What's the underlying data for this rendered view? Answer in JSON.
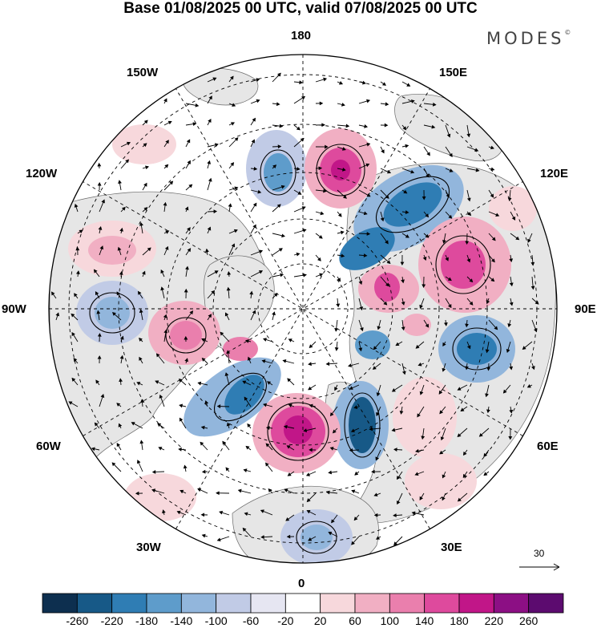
{
  "title": "Base 01/08/2025 00 UTC, valid 07/08/2025 00 UTC",
  "brand": "MODES",
  "brand_mark": "©",
  "longitude_labels": {
    "lon_180": "180",
    "lon_150w": "150W",
    "lon_150e": "150E",
    "lon_120w": "120W",
    "lon_120e": "120E",
    "lon_90w": "90W",
    "lon_90e": "90E",
    "lon_60w": "60W",
    "lon_60e": "60E",
    "lon_30w": "30W",
    "lon_30e": "30E",
    "lon_0": "0"
  },
  "reference_vector": "30",
  "colorbar": {
    "tick_labels": [
      "-260",
      "-220",
      "-180",
      "-140",
      "-100",
      "-60",
      "-20",
      "20",
      "60",
      "100",
      "140",
      "180",
      "220",
      "260"
    ],
    "colors": [
      "#0d2f4f",
      "#175987",
      "#2f7db4",
      "#5e9ccb",
      "#92b6dc",
      "#c1cbe6",
      "#e6e6f2",
      "#ffffff",
      "#f7d8dc",
      "#f1afc3",
      "#ea7fad",
      "#de4a9d",
      "#c11688",
      "#8c0f84",
      "#5c0b6f"
    ]
  },
  "colors": {
    "land": "#e6e6e6",
    "ocean": "#ffffff",
    "negative_strong": "#2f7db4",
    "positive_strong": "#c11688"
  }
}
